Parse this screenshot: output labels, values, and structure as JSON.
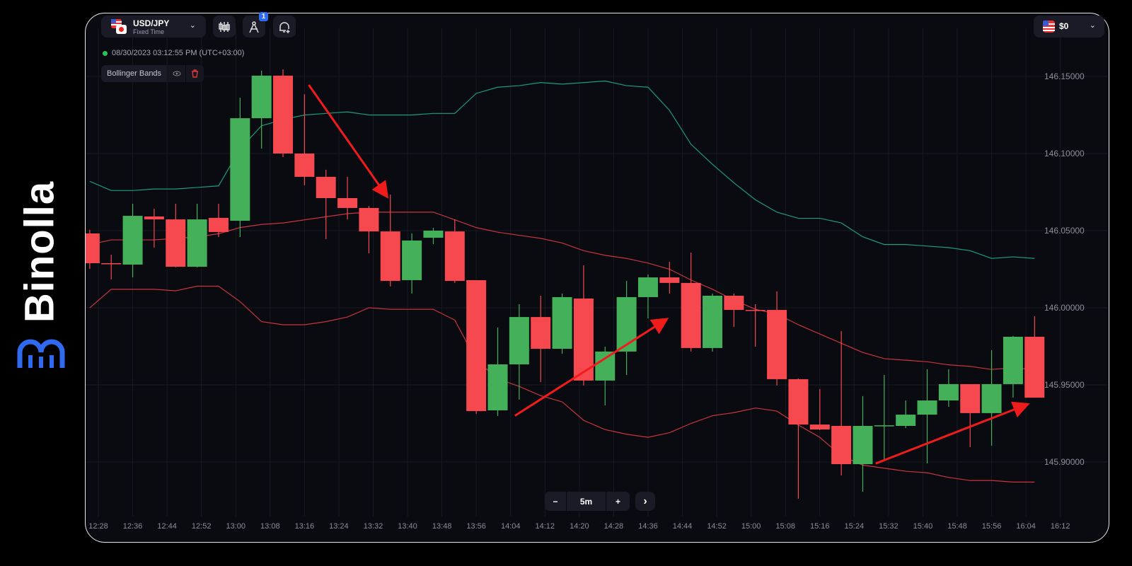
{
  "brand": {
    "name": "Binolla",
    "color": "#2f6bf0"
  },
  "header": {
    "pair": "USD/JPY",
    "mode": "Fixed Time",
    "tool_buttons": [
      {
        "icon": "candles-icon"
      },
      {
        "icon": "drawing-compass-icon",
        "badge": "1"
      },
      {
        "icon": "alarm-add-icon"
      }
    ],
    "balance": "$0"
  },
  "datetime": "08/30/2023 03:12:55 PM (UTC+03:00)",
  "indicator": {
    "label": "Bollinger Bands"
  },
  "timeframe": {
    "value": "5m",
    "minus": "−",
    "plus": "+",
    "next": "›"
  },
  "colors": {
    "bull": "#44b05a",
    "bear": "#f5484f",
    "band_upper": "#1b9c7c",
    "band_mid": "#c9343f",
    "band_lower": "#c9343f",
    "arrow": "#f01c1c",
    "grid": "#181a24"
  },
  "chart_data": {
    "type": "candlestick",
    "interval": "5m",
    "ylim": [
      145.86,
      146.17
    ],
    "y_ticks": [
      "146.15000",
      "146.10000",
      "146.05000",
      "146.00000",
      "145.95000",
      "145.90000"
    ],
    "x_ticks": [
      "12:28",
      "12:36",
      "12:44",
      "12:52",
      "13:00",
      "13:08",
      "13:16",
      "13:24",
      "13:32",
      "13:40",
      "13:48",
      "13:56",
      "14:04",
      "14:12",
      "14:20",
      "14:28",
      "14:36",
      "14:44",
      "14:52",
      "15:00",
      "15:08",
      "15:16",
      "15:24",
      "15:32",
      "15:40",
      "15:48",
      "15:56",
      "16:04",
      "16:12"
    ],
    "grid": true,
    "candles_ohlc": [
      [
        "12:26",
        146.0482,
        146.0505,
        146.0252,
        146.0289
      ],
      [
        "12:31",
        146.0289,
        146.0344,
        146.0184,
        146.0285
      ],
      [
        "12:36",
        146.028,
        146.0674,
        146.0197,
        146.0596
      ],
      [
        "12:41",
        146.0592,
        146.0642,
        146.039,
        146.0573
      ],
      [
        "12:46",
        146.0573,
        146.0674,
        146.0262,
        146.0266
      ],
      [
        "12:51",
        146.0266,
        146.0674,
        146.0262,
        146.0573
      ],
      [
        "12:56",
        146.0583,
        146.0674,
        146.0459,
        146.0491
      ],
      [
        "13:01",
        146.0564,
        146.1362,
        146.0459,
        146.1229
      ],
      [
        "13:06",
        146.1229,
        146.1537,
        146.1032,
        146.1505
      ],
      [
        "13:11",
        146.1505,
        146.1546,
        146.0977,
        146.1
      ],
      [
        "13:16",
        146.1,
        146.1385,
        146.0794,
        146.0849
      ],
      [
        "13:21",
        146.0849,
        146.0895,
        146.0445,
        146.0711
      ],
      [
        "13:26",
        146.0711,
        146.0849,
        146.0573,
        146.0647
      ],
      [
        "13:31",
        146.0647,
        146.066,
        146.0353,
        146.0495
      ],
      [
        "13:36",
        146.0495,
        146.0734,
        146.0138,
        146.0174
      ],
      [
        "13:41",
        146.0179,
        146.0482,
        146.0092,
        146.0436
      ],
      [
        "13:46",
        146.0454,
        146.0518,
        146.0413,
        146.05
      ],
      [
        "13:51",
        146.0495,
        146.0573,
        146.0161,
        146.0174
      ],
      [
        "13:56",
        146.0179,
        146.0179,
        145.9312,
        145.933
      ],
      [
        "14:01",
        145.9335,
        145.9872,
        145.9298,
        145.9633
      ],
      [
        "14:06",
        145.9633,
        146.0023,
        145.9404,
        145.994
      ],
      [
        "14:11",
        145.994,
        146.0078,
        145.9518,
        145.9734
      ],
      [
        "14:16",
        145.9734,
        146.0092,
        145.9702,
        146.0069
      ],
      [
        "14:21",
        146.006,
        146.0275,
        145.9496,
        145.9528
      ],
      [
        "14:26",
        145.9528,
        145.9748,
        145.9367,
        145.9716
      ],
      [
        "14:31",
        145.9716,
        146.0174,
        145.9564,
        146.0069
      ],
      [
        "14:36",
        146.0069,
        146.0216,
        145.9931,
        146.0197
      ],
      [
        "14:41",
        146.0197,
        146.0298,
        146.0092,
        146.0161
      ],
      [
        "14:46",
        146.0161,
        146.0358,
        145.9716,
        145.9739
      ],
      [
        "14:51",
        145.9739,
        146.0092,
        145.9716,
        146.0078
      ],
      [
        "14:56",
        146.0078,
        146.0092,
        145.9876,
        145.9986
      ],
      [
        "15:01",
        145.9986,
        146.0023,
        145.9748,
        145.9984
      ],
      [
        "15:06",
        145.9986,
        146.0106,
        145.9496,
        145.9537
      ],
      [
        "15:11",
        145.9537,
        145.9541,
        145.8762,
        145.9243
      ],
      [
        "15:16",
        145.9243,
        145.9473,
        145.9207,
        145.9211
      ],
      [
        "15:21",
        145.9234,
        145.9849,
        145.8913,
        145.8986
      ],
      [
        "15:26",
        145.8986,
        145.9427,
        145.8807,
        145.9234
      ],
      [
        "15:31",
        145.9234,
        145.9564,
        145.9014,
        145.9238
      ],
      [
        "15:36",
        145.9234,
        145.9399,
        145.922,
        145.9307
      ],
      [
        "15:41",
        145.9307,
        145.9601,
        145.8991,
        145.9399
      ],
      [
        "15:46",
        145.9399,
        145.9601,
        145.9358,
        145.9505
      ],
      [
        "15:51",
        145.9505,
        145.9505,
        145.9096,
        145.9317
      ],
      [
        "15:56",
        145.9317,
        145.9725,
        145.9106,
        145.9505
      ],
      [
        "16:01",
        145.9505,
        145.9817,
        145.9417,
        145.9812
      ],
      [
        "16:06",
        145.9812,
        145.9945,
        145.9417,
        145.9417
      ]
    ],
    "bollinger": {
      "upper": [
        146.082,
        146.076,
        146.076,
        146.077,
        146.077,
        146.078,
        146.079,
        146.103,
        146.118,
        146.122,
        146.125,
        146.126,
        146.127,
        146.125,
        146.125,
        146.125,
        146.126,
        146.126,
        146.139,
        146.143,
        146.144,
        146.146,
        146.145,
        146.146,
        146.147,
        146.144,
        146.143,
        146.128,
        146.106,
        146.093,
        146.081,
        146.07,
        146.062,
        146.058,
        146.058,
        146.055,
        146.046,
        146.041,
        146.041,
        146.04,
        146.039,
        146.037,
        146.032,
        146.033,
        146.032
      ],
      "middle": [
        146.041,
        146.044,
        146.044,
        146.044,
        146.045,
        146.046,
        146.048,
        146.052,
        146.054,
        146.055,
        146.057,
        146.059,
        146.061,
        146.062,
        146.062,
        146.062,
        146.062,
        146.057,
        146.052,
        146.049,
        146.047,
        146.045,
        146.042,
        146.037,
        146.034,
        146.032,
        146.029,
        146.025,
        146.018,
        146.012,
        146.005,
        145.999,
        145.996,
        145.989,
        145.983,
        145.977,
        145.971,
        145.967,
        145.966,
        145.965,
        145.963,
        145.962,
        145.96,
        145.961,
        145.96
      ],
      "lower": [
        146.0,
        146.012,
        146.012,
        146.012,
        146.011,
        146.014,
        146.014,
        146.004,
        145.991,
        145.989,
        145.989,
        145.991,
        145.994,
        146.0,
        145.999,
        145.999,
        145.999,
        145.992,
        145.966,
        145.954,
        145.949,
        145.943,
        145.939,
        145.927,
        145.921,
        145.918,
        145.916,
        145.919,
        145.925,
        145.93,
        145.932,
        145.935,
        145.933,
        145.924,
        145.916,
        145.904,
        145.898,
        145.896,
        145.894,
        145.893,
        145.89,
        145.888,
        145.888,
        145.887,
        145.887
      ]
    },
    "annotations": [
      {
        "type": "arrow",
        "from": [
          "13:17",
          146.1445
        ],
        "to": [
          "13:35",
          146.073
        ]
      },
      {
        "type": "arrow",
        "from": [
          "14:05",
          145.93
        ],
        "to": [
          "14:40",
          145.992
        ]
      },
      {
        "type": "arrow",
        "from": [
          "15:29",
          145.899
        ],
        "to": [
          "16:04",
          145.937
        ]
      }
    ]
  }
}
